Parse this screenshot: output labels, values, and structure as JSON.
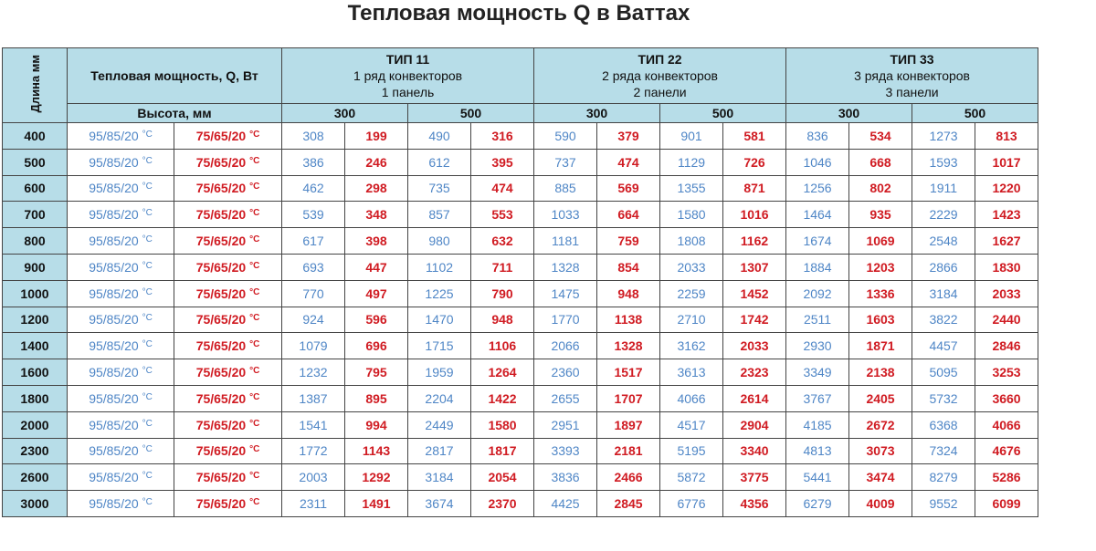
{
  "title": "Тепловая мощность Q в Ваттах",
  "header": {
    "length_label": "Длина мм",
    "power_label": "Тепловая мощность, Q, Вт",
    "height_label": "Высота, мм",
    "types": [
      {
        "name": "ТИП 11",
        "line1": "1 ряд конвекторов",
        "line2": "1 панель"
      },
      {
        "name": "ТИП 22",
        "line1": "2 ряда конвекторов",
        "line2": "2 панели"
      },
      {
        "name": "ТИП 33",
        "line1": "3 ряда конвекторов",
        "line2": "3 панели"
      }
    ],
    "heights": [
      "300",
      "500",
      "300",
      "500",
      "300",
      "500"
    ]
  },
  "modes": {
    "hot": "95/85/20",
    "warm": "75/65/20",
    "unit": "°C"
  },
  "colors": {
    "header_bg": "#b7dde8",
    "blue": "#4f86c6",
    "red": "#d01b22"
  },
  "rows": [
    {
      "len": "400",
      "v": [
        "308",
        "199",
        "490",
        "316",
        "590",
        "379",
        "901",
        "581",
        "836",
        "534",
        "1273",
        "813"
      ]
    },
    {
      "len": "500",
      "v": [
        "386",
        "246",
        "612",
        "395",
        "737",
        "474",
        "1129",
        "726",
        "1046",
        "668",
        "1593",
        "1017"
      ]
    },
    {
      "len": "600",
      "v": [
        "462",
        "298",
        "735",
        "474",
        "885",
        "569",
        "1355",
        "871",
        "1256",
        "802",
        "1911",
        "1220"
      ]
    },
    {
      "len": "700",
      "v": [
        "539",
        "348",
        "857",
        "553",
        "1033",
        "664",
        "1580",
        "1016",
        "1464",
        "935",
        "2229",
        "1423"
      ]
    },
    {
      "len": "800",
      "v": [
        "617",
        "398",
        "980",
        "632",
        "1181",
        "759",
        "1808",
        "1162",
        "1674",
        "1069",
        "2548",
        "1627"
      ]
    },
    {
      "len": "900",
      "v": [
        "693",
        "447",
        "1102",
        "711",
        "1328",
        "854",
        "2033",
        "1307",
        "1884",
        "1203",
        "2866",
        "1830"
      ]
    },
    {
      "len": "1000",
      "v": [
        "770",
        "497",
        "1225",
        "790",
        "1475",
        "948",
        "2259",
        "1452",
        "2092",
        "1336",
        "3184",
        "2033"
      ]
    },
    {
      "len": "1200",
      "v": [
        "924",
        "596",
        "1470",
        "948",
        "1770",
        "1138",
        "2710",
        "1742",
        "2511",
        "1603",
        "3822",
        "2440"
      ]
    },
    {
      "len": "1400",
      "v": [
        "1079",
        "696",
        "1715",
        "1106",
        "2066",
        "1328",
        "3162",
        "2033",
        "2930",
        "1871",
        "4457",
        "2846"
      ]
    },
    {
      "len": "1600",
      "v": [
        "1232",
        "795",
        "1959",
        "1264",
        "2360",
        "1517",
        "3613",
        "2323",
        "3349",
        "2138",
        "5095",
        "3253"
      ]
    },
    {
      "len": "1800",
      "v": [
        "1387",
        "895",
        "2204",
        "1422",
        "2655",
        "1707",
        "4066",
        "2614",
        "3767",
        "2405",
        "5732",
        "3660"
      ]
    },
    {
      "len": "2000",
      "v": [
        "1541",
        "994",
        "2449",
        "1580",
        "2951",
        "1897",
        "4517",
        "2904",
        "4185",
        "2672",
        "6368",
        "4066"
      ]
    },
    {
      "len": "2300",
      "v": [
        "1772",
        "1143",
        "2817",
        "1817",
        "3393",
        "2181",
        "5195",
        "3340",
        "4813",
        "3073",
        "7324",
        "4676"
      ]
    },
    {
      "len": "2600",
      "v": [
        "2003",
        "1292",
        "3184",
        "2054",
        "3836",
        "2466",
        "5872",
        "3775",
        "5441",
        "3474",
        "8279",
        "5286"
      ]
    },
    {
      "len": "3000",
      "v": [
        "2311",
        "1491",
        "3674",
        "2370",
        "4425",
        "2845",
        "6776",
        "4356",
        "6279",
        "4009",
        "9552",
        "6099"
      ]
    }
  ]
}
